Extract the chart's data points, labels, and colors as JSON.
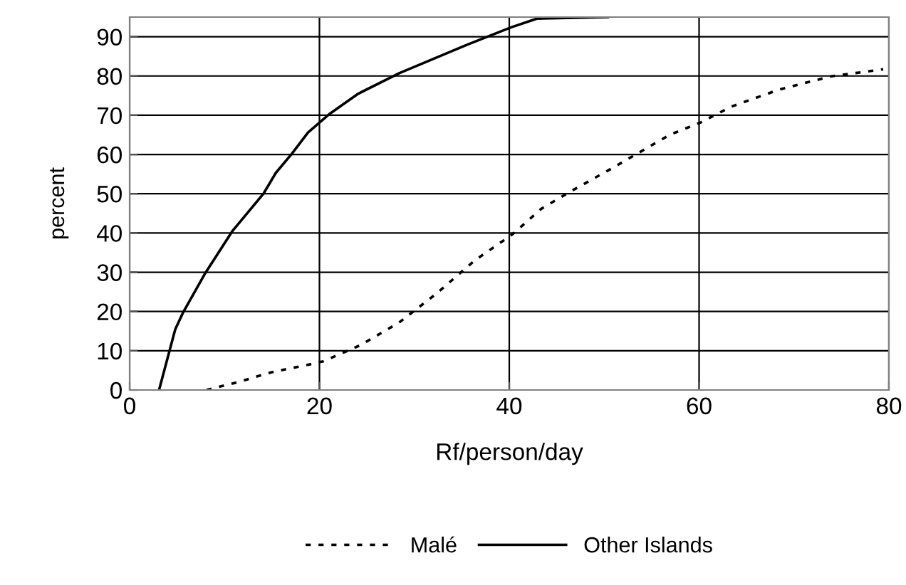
{
  "chart_data": {
    "type": "line",
    "xlabel": "Rf/person/day",
    "ylabel": "percent",
    "xlim": [
      0,
      80
    ],
    "xticks": [
      0,
      20,
      40,
      60,
      80
    ],
    "ylim": [
      0,
      95
    ],
    "yticks": [
      0,
      10,
      20,
      30,
      40,
      50,
      60,
      70,
      80,
      90
    ],
    "grid": true,
    "legend": "bottom",
    "marker": "none",
    "series": [
      {
        "name": "Malé",
        "color": "#000000",
        "line_style": "dotted",
        "x": [
          8.1,
          11.4,
          14.9,
          18.9,
          20.4,
          24.3,
          28.4,
          32.4,
          36.3,
          40.3,
          43.4,
          46.4,
          50.4,
          53.4,
          56.9,
          60.2,
          63.4,
          68.4,
          73.9,
          79.4
        ],
        "values": [
          0,
          2,
          4.5,
          6.5,
          7.3,
          11.4,
          17.2,
          24.7,
          32.9,
          39.6,
          46.2,
          50.5,
          55.9,
          60.1,
          65,
          68.2,
          72.2,
          76.5,
          79.9,
          81.7
        ]
      },
      {
        "name": "Other Islands",
        "color": "#000000",
        "line_style": "solid",
        "x": [
          3.1,
          4.8,
          5.6,
          7.9,
          10.8,
          14.1,
          15.4,
          17.1,
          18.8,
          21.1,
          24.1,
          28.4,
          35.6,
          40.2,
          42.9,
          50.4
        ],
        "values": [
          0,
          15.4,
          19.6,
          29.5,
          40.4,
          50,
          55.3,
          60.2,
          65.6,
          70.4,
          75.5,
          80.7,
          88,
          92.4,
          94.6,
          95
        ]
      }
    ]
  }
}
